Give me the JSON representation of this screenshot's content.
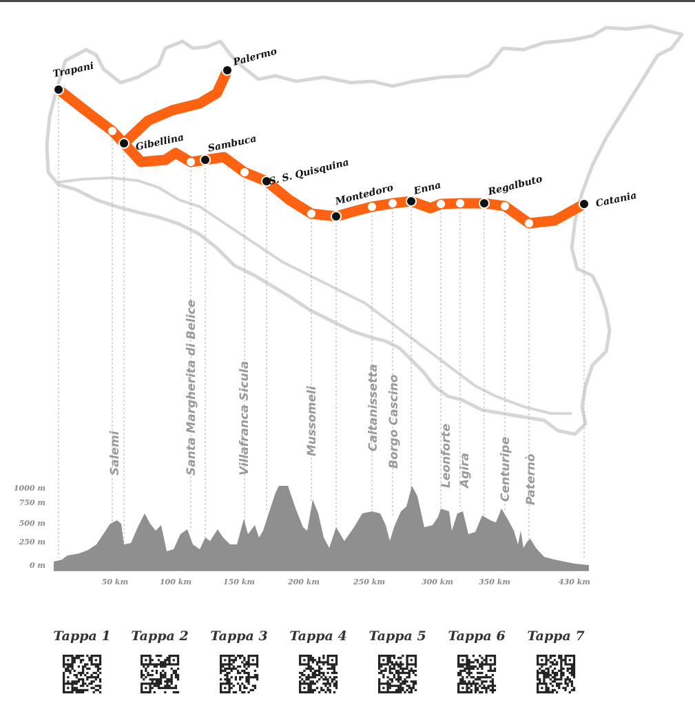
{
  "stops": [
    {
      "id": "trapani",
      "name": "Trapani"
    },
    {
      "id": "palermo",
      "name": "Palermo"
    },
    {
      "id": "gibellina",
      "name": "Gibellina"
    },
    {
      "id": "sambuca",
      "name": "Sambuca"
    },
    {
      "id": "ssquisquina",
      "name": "S. S. Quisquina"
    },
    {
      "id": "montedoro",
      "name": "Montedoro"
    },
    {
      "id": "enna",
      "name": "Enna"
    },
    {
      "id": "regalbuto",
      "name": "Regalbuto"
    },
    {
      "id": "catania",
      "name": "Catania"
    }
  ],
  "towns": [
    {
      "id": "salemi",
      "name": "Salemi"
    },
    {
      "id": "santa-margherita",
      "name": "Santa Margherita di Belice"
    },
    {
      "id": "villafranca",
      "name": "Villafranca Sicula"
    },
    {
      "id": "mussomeli",
      "name": "Mussomeli"
    },
    {
      "id": "caltanissetta",
      "name": "Caltanissetta"
    },
    {
      "id": "borgo-cascino",
      "name": "Borgo Cascino"
    },
    {
      "id": "leonforte",
      "name": "Leonforte"
    },
    {
      "id": "agira",
      "name": "Agira"
    },
    {
      "id": "centuripe",
      "name": "Centuripe"
    },
    {
      "id": "paterno",
      "name": "Paternò"
    }
  ],
  "profile": {
    "y_ticks": [
      "1000 m",
      "750 m",
      "500 m",
      "250 m",
      "0 m"
    ],
    "x_ticks": [
      "50 km",
      "100 km",
      "150 km",
      "200 km",
      "250 km",
      "300 km",
      "350 km",
      "430 km"
    ],
    "colors": {
      "route": "#ff6210",
      "profile": "#8f8f8f",
      "island": "#d4d4d4"
    }
  },
  "stages": [
    {
      "label": "Tappa 1"
    },
    {
      "label": "Tappa 2"
    },
    {
      "label": "Tappa 3"
    },
    {
      "label": "Tappa 4"
    },
    {
      "label": "Tappa 5"
    },
    {
      "label": "Tappa 6"
    },
    {
      "label": "Tappa 7"
    }
  ]
}
